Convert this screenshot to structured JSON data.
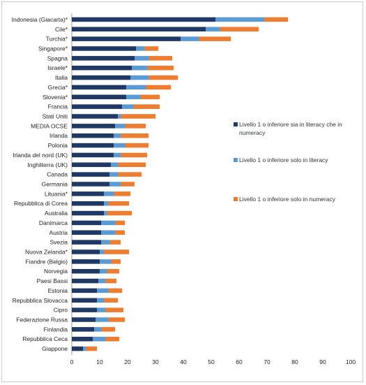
{
  "chart_data": {
    "type": "bar",
    "stacked": true,
    "orientation": "horizontal",
    "categories": [
      "Indonesia (Giacarta)*",
      "Cile*",
      "Turchia*",
      "Singapore*",
      "Spagna",
      "Israele*",
      "Italia",
      "Grecia*",
      "Slovenia*",
      "Francia",
      "Stati Uniti",
      "MEDIA OCSE",
      "Irlanda",
      "Polonia",
      "Irlanda del nord (UK)",
      "Inghilterra (UK)",
      "Canada",
      "Germania",
      "Lituania*",
      "Repubblica di Corea",
      "Australia",
      "Danimarca",
      "Austria",
      "Svezia",
      "Nuova Zelanda*",
      "Fiandre (Belgio)",
      "Norvegia",
      "Paesi Bassi",
      "Estonia",
      "Repubblica Slovacca",
      "Cipro",
      "Federazione Russa",
      "Finlandia",
      "Repubblica Ceca",
      "Giappone"
    ],
    "series": [
      {
        "name": "Livello 1 o inferiore sia in literacy che in numeracy",
        "values": [
          51.5,
          48.0,
          39.0,
          23.0,
          22.5,
          21.5,
          21.0,
          19.5,
          19.5,
          18.0,
          16.5,
          15.5,
          15.0,
          15.0,
          15.0,
          14.0,
          13.5,
          13.5,
          11.5,
          11.5,
          11.5,
          10.5,
          10.5,
          10.5,
          10.0,
          10.0,
          10.0,
          9.5,
          9.0,
          9.0,
          9.0,
          8.5,
          8.0,
          7.5,
          4.0
        ]
      },
      {
        "name": "Livello 1 o inferiore solo in literacy",
        "values": [
          17.5,
          5.0,
          6.5,
          3.0,
          5.0,
          5.5,
          6.5,
          7.0,
          5.0,
          4.0,
          1.0,
          3.5,
          2.5,
          4.0,
          2.5,
          2.5,
          3.0,
          4.0,
          3.5,
          1.5,
          1.0,
          5.0,
          5.0,
          3.0,
          1.5,
          4.0,
          2.5,
          2.5,
          4.0,
          2.5,
          3.0,
          4.5,
          2.5,
          4.5,
          1.0
        ]
      },
      {
        "name": "Livello 1 o inferiore solo in numeracy",
        "values": [
          8.5,
          14.0,
          11.5,
          5.0,
          8.5,
          9.5,
          10.5,
          9.0,
          7.0,
          9.5,
          12.5,
          7.5,
          10.0,
          8.5,
          9.5,
          10.0,
          8.5,
          5.0,
          6.0,
          7.5,
          9.0,
          3.5,
          3.5,
          4.0,
          9.0,
          3.5,
          4.5,
          4.0,
          5.0,
          5.0,
          6.5,
          6.0,
          5.0,
          5.0,
          4.0
        ]
      }
    ],
    "colors": [
      "#1f3864",
      "#5b9bd5",
      "#ed7d31"
    ],
    "xlim": [
      0,
      100
    ],
    "xticks": [
      "0",
      "10",
      "20",
      "30",
      "40",
      "50",
      "60",
      "70",
      "80",
      "90",
      "100"
    ],
    "xlabel": "",
    "ylabel": "",
    "title": "",
    "grid": false,
    "legend_position": "right"
  }
}
